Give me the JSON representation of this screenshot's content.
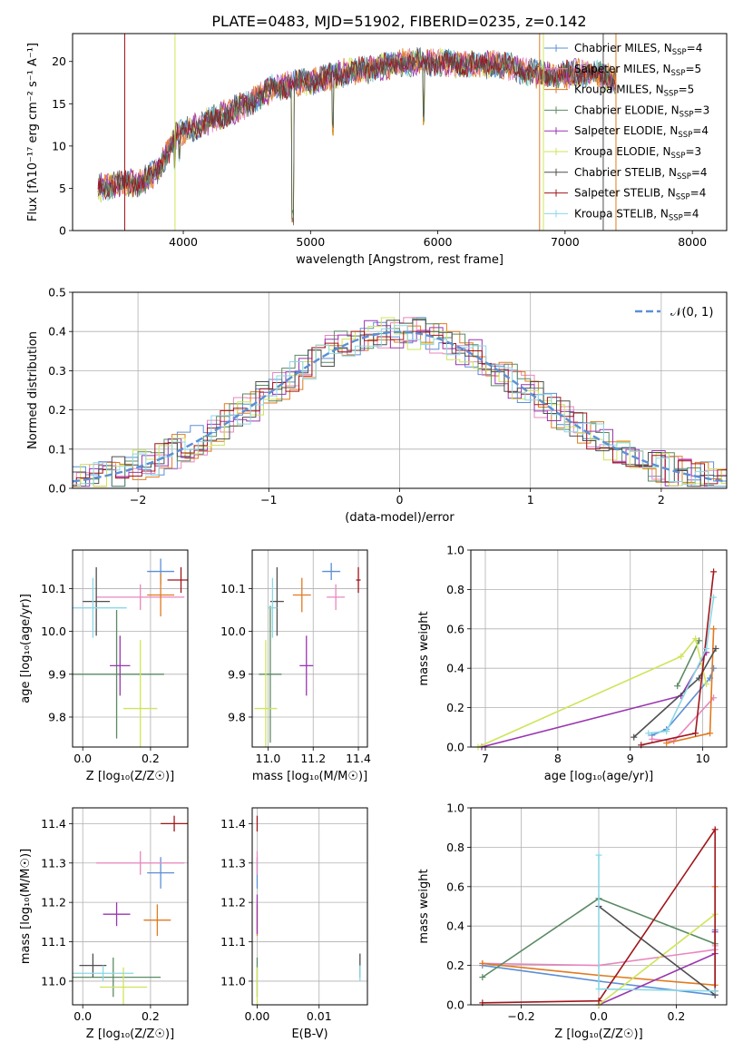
{
  "figure": {
    "title": "PLATE=0483, MJD=51902, FIBERID=0235, z=0.142"
  },
  "colors": {
    "chabrier_miles": "#5b8fd6",
    "salpeter_miles": "#e986bf",
    "kroupa_miles": "#e07a1f",
    "chabrier_elodie": "#5b8a64",
    "salpeter_elodie": "#9a35b0",
    "kroupa_elodie": "#cfe45a",
    "chabrier_stelib": "#4f4f4f",
    "salpeter_stelib": "#a0161b",
    "kroupa_stelib": "#8ad8e6",
    "normal": "#5b8fd6"
  },
  "legend_spectrum": [
    {
      "key": "chabrier_miles",
      "imf": "Chabrier MILES",
      "n": "4"
    },
    {
      "key": "salpeter_miles",
      "imf": "Salpeter MILES",
      "n": "5"
    },
    {
      "key": "kroupa_miles",
      "imf": "Kroupa MILES",
      "n": "5"
    },
    {
      "key": "chabrier_elodie",
      "imf": "Chabrier ELODIE",
      "n": "3"
    },
    {
      "key": "salpeter_elodie",
      "imf": "Salpeter ELODIE",
      "n": "4"
    },
    {
      "key": "kroupa_elodie",
      "imf": "Kroupa ELODIE",
      "n": "3"
    },
    {
      "key": "chabrier_stelib",
      "imf": "Chabrier STELIB",
      "n": "4"
    },
    {
      "key": "salpeter_stelib",
      "imf": "Salpeter STELIB",
      "n": "4"
    },
    {
      "key": "kroupa_stelib",
      "imf": "Kroupa STELIB",
      "n": "4"
    }
  ],
  "chart_data": [
    {
      "id": "spectrum",
      "type": "line",
      "xlabel": "wavelength [Angstrom, rest frame]",
      "ylabel": "Flux [fλ10⁻¹⁷ erg cm⁻² s⁻¹ A⁻¹]",
      "xlim": [
        3130,
        8270
      ],
      "ylim": [
        0,
        23.3
      ],
      "xticks": [
        "4000",
        "5000",
        "6000",
        "7000",
        "8000"
      ],
      "yticks": [
        "0",
        "5",
        "10",
        "15",
        "20"
      ],
      "spectrum_continuum": [
        [
          3330,
          5.0
        ],
        [
          3500,
          5.5
        ],
        [
          3650,
          5.6
        ],
        [
          3800,
          7.0
        ],
        [
          3950,
          11.5
        ],
        [
          4100,
          12.3
        ],
        [
          4300,
          13.6
        ],
        [
          4500,
          15.0
        ],
        [
          4700,
          16.8
        ],
        [
          4900,
          17.5
        ],
        [
          5100,
          17.9
        ],
        [
          5300,
          18.8
        ],
        [
          5500,
          19.2
        ],
        [
          5700,
          19.8
        ],
        [
          5900,
          20.0
        ],
        [
          6100,
          19.8
        ],
        [
          6300,
          19.6
        ],
        [
          6500,
          19.6
        ],
        [
          6700,
          18.8
        ],
        [
          6900,
          18.2
        ],
        [
          7100,
          18.6
        ],
        [
          7300,
          18.3
        ],
        [
          7400,
          17.7
        ]
      ],
      "spectrum_features": [
        [
          3933,
          7.2
        ],
        [
          3968,
          7.8
        ],
        [
          4861,
          0.6
        ],
        [
          5175,
          11.2
        ],
        [
          5890,
          12.2
        ]
      ],
      "grid": false
    },
    {
      "id": "residuals",
      "type": "step",
      "xlabel": "(data-model)/error",
      "ylabel": "Normed distribution",
      "xlim": [
        -2.5,
        2.5
      ],
      "ylim": [
        0,
        0.5
      ],
      "xticks": [
        "−2",
        "−1",
        "0",
        "1",
        "2"
      ],
      "yticks": [
        "0.0",
        "0.1",
        "0.2",
        "0.3",
        "0.4",
        "0.5"
      ],
      "legend": "𝒩(0, 1)",
      "grid": true,
      "bin_width": 0.1
    },
    {
      "id": "age_vs_Z",
      "type": "errorbar",
      "xlabel": "Z [log₁₀(Z/Z☉)]",
      "ylabel": "age  [log₁₀(age/yr)]",
      "xlim": [
        -0.03,
        0.31
      ],
      "ylim": [
        9.73,
        10.19
      ],
      "xticks": [
        "0.0",
        "0.2"
      ],
      "yticks": [
        "9.8",
        "9.9",
        "10.0",
        "10.1"
      ],
      "grid": true,
      "points": [
        {
          "key": "chabrier_miles",
          "x": 0.23,
          "y": 10.14,
          "xerr": 0.04,
          "yerr": 0.03
        },
        {
          "key": "salpeter_miles",
          "x": 0.17,
          "y": 10.08,
          "xerr": 0.13,
          "yerr": 0.03
        },
        {
          "key": "kroupa_miles",
          "x": 0.23,
          "y": 10.085,
          "xerr": 0.04,
          "yerr": 0.05
        },
        {
          "key": "chabrier_elodie",
          "x": 0.1,
          "y": 9.9,
          "xerr": 0.14,
          "yerr": 0.15
        },
        {
          "key": "salpeter_elodie",
          "x": 0.11,
          "y": 9.92,
          "xerr": 0.03,
          "yerr": 0.07
        },
        {
          "key": "kroupa_elodie",
          "x": 0.17,
          "y": 9.82,
          "xerr": 0.05,
          "yerr": 0.16
        },
        {
          "key": "chabrier_stelib",
          "x": 0.04,
          "y": 10.07,
          "xerr": 0.04,
          "yerr": 0.08
        },
        {
          "key": "salpeter_stelib",
          "x": 0.29,
          "y": 10.12,
          "xerr": 0.04,
          "yerr": 0.03
        },
        {
          "key": "kroupa_stelib",
          "x": 0.03,
          "y": 10.055,
          "xerr": 0.1,
          "yerr": 0.07
        }
      ]
    },
    {
      "id": "age_vs_mass",
      "type": "errorbar",
      "xlabel": "mass [log₁₀(M/M☉)]",
      "ylabel": "",
      "xlim": [
        10.93,
        11.44
      ],
      "ylim": [
        9.73,
        10.19
      ],
      "xticks": [
        "11.0",
        "11.2",
        "11.4"
      ],
      "yticks": [
        "9.8",
        "9.9",
        "10.0",
        "10.1"
      ],
      "grid": true,
      "points": [
        {
          "key": "chabrier_miles",
          "x": 11.28,
          "y": 10.14,
          "xerr": 0.04,
          "yerr": 0.02
        },
        {
          "key": "salpeter_miles",
          "x": 11.3,
          "y": 10.08,
          "xerr": 0.04,
          "yerr": 0.03
        },
        {
          "key": "kroupa_miles",
          "x": 11.15,
          "y": 10.085,
          "xerr": 0.04,
          "yerr": 0.04
        },
        {
          "key": "chabrier_elodie",
          "x": 11.01,
          "y": 9.9,
          "xerr": 0.05,
          "yerr": 0.16
        },
        {
          "key": "salpeter_elodie",
          "x": 11.17,
          "y": 9.92,
          "xerr": 0.03,
          "yerr": 0.07
        },
        {
          "key": "kroupa_elodie",
          "x": 10.99,
          "y": 9.82,
          "xerr": 0.05,
          "yerr": 0.16
        },
        {
          "key": "chabrier_stelib",
          "x": 11.04,
          "y": 10.07,
          "xerr": 0.03,
          "yerr": 0.08
        },
        {
          "key": "salpeter_stelib",
          "x": 11.4,
          "y": 10.12,
          "xerr": 0.01,
          "yerr": 0.03
        },
        {
          "key": "kroupa_stelib",
          "x": 11.02,
          "y": 10.055,
          "xerr": 0.02,
          "yerr": 0.07
        }
      ]
    },
    {
      "id": "weight_vs_age",
      "type": "line",
      "xlabel": "age  [log₁₀(age/yr)]",
      "ylabel": "mass weight",
      "xlim": [
        6.8,
        10.33
      ],
      "ylim": [
        0,
        1.0
      ],
      "xticks": [
        "7",
        "8",
        "9",
        "10"
      ],
      "yticks": [
        "0.0",
        "0.2",
        "0.4",
        "0.6",
        "0.8",
        "1.0"
      ],
      "grid": true,
      "series": [
        {
          "key": "chabrier_miles",
          "x": [
            9.3,
            9.5,
            10.1,
            10.15
          ],
          "y": [
            0.06,
            0.09,
            0.35,
            0.4
          ]
        },
        {
          "key": "salpeter_miles",
          "x": [
            9.3,
            9.6,
            10.15
          ],
          "y": [
            0.04,
            0.03,
            0.25
          ]
        },
        {
          "key": "kroupa_miles",
          "x": [
            9.5,
            10.1,
            10.15
          ],
          "y": [
            0.02,
            0.07,
            0.6
          ]
        },
        {
          "key": "chabrier_elodie",
          "x": [
            9.65,
            9.95
          ],
          "y": [
            0.31,
            0.54
          ]
        },
        {
          "key": "salpeter_elodie",
          "x": [
            6.95,
            9.7,
            10.05
          ],
          "y": [
            0.0,
            0.26,
            0.48
          ]
        },
        {
          "key": "kroupa_elodie",
          "x": [
            6.9,
            9.7,
            9.9,
            10.05
          ],
          "y": [
            0.0,
            0.46,
            0.55,
            0.32
          ]
        },
        {
          "key": "chabrier_stelib",
          "x": [
            9.05,
            9.95,
            10.18
          ],
          "y": [
            0.05,
            0.35,
            0.5
          ]
        },
        {
          "key": "salpeter_stelib",
          "x": [
            9.15,
            9.9,
            10.15
          ],
          "y": [
            0.01,
            0.07,
            0.89
          ]
        },
        {
          "key": "kroupa_stelib",
          "x": [
            9.25,
            9.5,
            10.05,
            10.15
          ],
          "y": [
            0.07,
            0.08,
            0.5,
            0.76
          ]
        }
      ]
    },
    {
      "id": "mass_vs_Z",
      "type": "errorbar",
      "xlabel": "Z [log₁₀(Z/Z☉)]",
      "ylabel": "mass [log₁₀(M/M☉)]",
      "xlim": [
        -0.03,
        0.31
      ],
      "ylim": [
        10.94,
        11.44
      ],
      "xticks": [
        "0.0",
        "0.2"
      ],
      "yticks": [
        "11.0",
        "11.1",
        "11.2",
        "11.3",
        "11.4"
      ],
      "grid": true,
      "points": [
        {
          "key": "chabrier_miles",
          "x": 0.23,
          "y": 11.275,
          "xerr": 0.04,
          "yerr": 0.04
        },
        {
          "key": "salpeter_miles",
          "x": 0.17,
          "y": 11.3,
          "xerr": 0.13,
          "yerr": 0.03
        },
        {
          "key": "kroupa_miles",
          "x": 0.22,
          "y": 11.155,
          "xerr": 0.04,
          "yerr": 0.04
        },
        {
          "key": "chabrier_elodie",
          "x": 0.09,
          "y": 11.01,
          "xerr": 0.14,
          "yerr": 0.05
        },
        {
          "key": "salpeter_elodie",
          "x": 0.1,
          "y": 11.17,
          "xerr": 0.04,
          "yerr": 0.03
        },
        {
          "key": "kroupa_elodie",
          "x": 0.12,
          "y": 10.985,
          "xerr": 0.07,
          "yerr": 0.05
        },
        {
          "key": "chabrier_stelib",
          "x": 0.03,
          "y": 11.04,
          "xerr": 0.04,
          "yerr": 0.03
        },
        {
          "key": "salpeter_stelib",
          "x": 0.27,
          "y": 11.4,
          "xerr": 0.04,
          "yerr": 0.02
        },
        {
          "key": "kroupa_stelib",
          "x": 0.06,
          "y": 11.02,
          "xerr": 0.09,
          "yerr": 0.02
        }
      ]
    },
    {
      "id": "mass_vs_EBV",
      "type": "errorbar",
      "xlabel": "E(B-V)",
      "ylabel": "",
      "xlim": [
        -0.0008,
        0.0178
      ],
      "ylim": [
        10.94,
        11.44
      ],
      "xticks": [
        "0.00",
        "0.01"
      ],
      "yticks": [
        "11.0",
        "11.1",
        "11.2",
        "11.3",
        "11.4"
      ],
      "grid": true,
      "points": [
        {
          "key": "chabrier_miles",
          "x": 0.0,
          "y": 11.275,
          "xerr": 0,
          "yerr": 0.04
        },
        {
          "key": "salpeter_miles",
          "x": 0.0,
          "y": 11.3,
          "xerr": 0,
          "yerr": 0.03
        },
        {
          "key": "kroupa_miles",
          "x": 0.0,
          "y": 11.155,
          "xerr": 0,
          "yerr": 0.04
        },
        {
          "key": "chabrier_elodie",
          "x": 0.0,
          "y": 11.01,
          "xerr": 0,
          "yerr": 0.05
        },
        {
          "key": "salpeter_elodie",
          "x": 0.0,
          "y": 11.17,
          "xerr": 0,
          "yerr": 0.05
        },
        {
          "key": "kroupa_elodie",
          "x": 0.0,
          "y": 10.985,
          "xerr": 0,
          "yerr": 0.05
        },
        {
          "key": "chabrier_stelib",
          "x": 0.0166,
          "y": 11.04,
          "xerr": 0,
          "yerr": 0.03
        },
        {
          "key": "salpeter_stelib",
          "x": 0.0,
          "y": 11.4,
          "xerr": 0,
          "yerr": 0.02
        },
        {
          "key": "kroupa_stelib",
          "x": 0.0166,
          "y": 11.02,
          "xerr": 0,
          "yerr": 0.02
        }
      ]
    },
    {
      "id": "weight_vs_Z",
      "type": "line",
      "xlabel": "Z [log₁₀(Z/Z☉)]",
      "ylabel": "mass weight",
      "xlim": [
        -0.33,
        0.33
      ],
      "ylim": [
        0,
        1.0
      ],
      "xticks": [
        "−0.2",
        "0.0",
        "0.2"
      ],
      "yticks": [
        "0.0",
        "0.2",
        "0.4",
        "0.6",
        "0.8",
        "1.0"
      ],
      "grid": true,
      "series": [
        {
          "key": "chabrier_miles",
          "x": [
            -0.3,
            0.0,
            0.3,
            0.3
          ],
          "y": [
            0.2,
            0.12,
            0.05,
            0.38
          ]
        },
        {
          "key": "salpeter_miles",
          "x": [
            -0.3,
            0.0,
            0.3,
            0.3
          ],
          "y": [
            0.21,
            0.2,
            0.28,
            0.3
          ]
        },
        {
          "key": "kroupa_miles",
          "x": [
            -0.3,
            0.0,
            0.3,
            0.3
          ],
          "y": [
            0.21,
            0.15,
            0.1,
            0.6
          ]
        },
        {
          "key": "chabrier_elodie",
          "x": [
            -0.3,
            0.0,
            0.3
          ],
          "y": [
            0.14,
            0.54,
            0.31
          ]
        },
        {
          "key": "salpeter_elodie",
          "x": [
            0.0,
            0.3,
            0.3
          ],
          "y": [
            0.0,
            0.26,
            0.37
          ]
        },
        {
          "key": "kroupa_elodie",
          "x": [
            0.0,
            0.3
          ],
          "y": [
            0.0,
            0.46
          ]
        },
        {
          "key": "chabrier_stelib",
          "x": [
            0.0,
            0.3
          ],
          "y": [
            0.5,
            0.05
          ]
        },
        {
          "key": "salpeter_stelib",
          "x": [
            -0.3,
            0.0,
            0.3,
            0.3
          ],
          "y": [
            0.01,
            0.02,
            0.89,
            0.07
          ]
        },
        {
          "key": "kroupa_stelib",
          "x": [
            0.0,
            0.0,
            0.3
          ],
          "y": [
            0.76,
            0.08,
            0.07
          ]
        }
      ]
    }
  ]
}
